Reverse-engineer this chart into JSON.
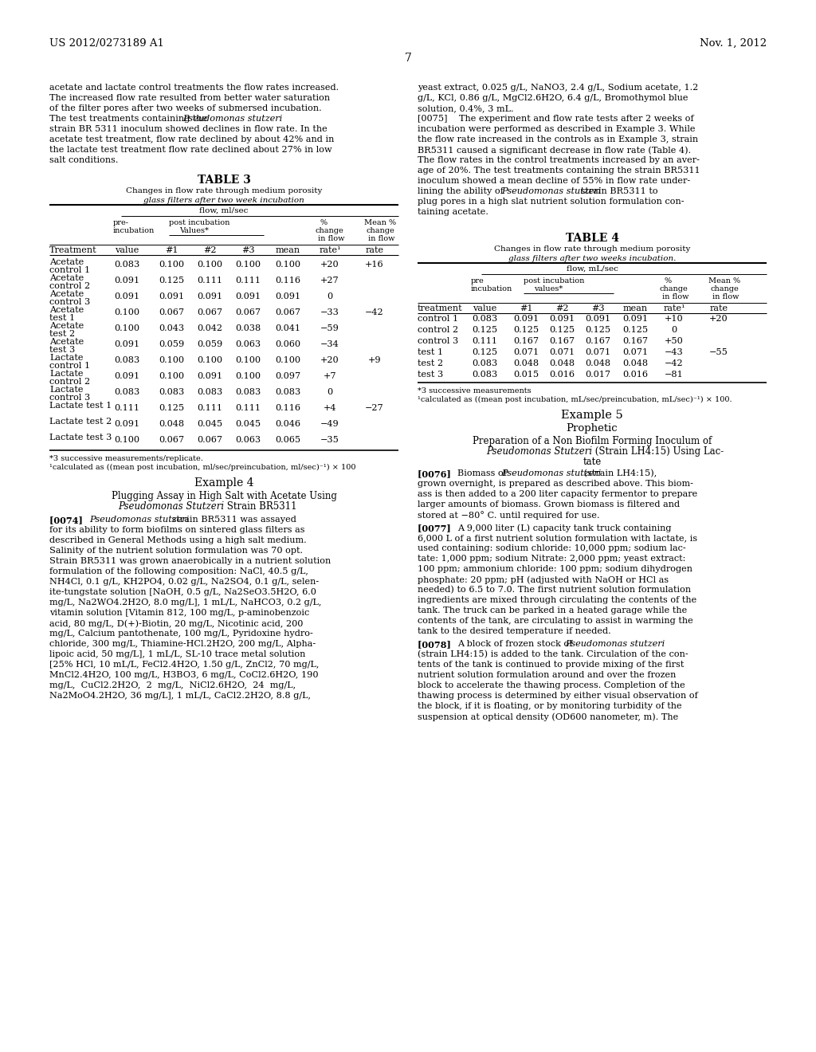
{
  "background_color": "#ffffff",
  "header_left": "US 2012/0273189 A1",
  "header_right": "Nov. 1, 2012",
  "page_number": "7",
  "left_body_lines": [
    "acetate and lactate control treatments the flow rates increased.",
    "The increased flow rate resulted from better water saturation",
    "of the filter pores after two weeks of submersed incubation.",
    "The test treatments containing the Pseudomonas stutzeri",
    "strain BR 5311 inoculum showed declines in flow rate. In the",
    "acetate test treatment, flow rate declined by about 42% and in",
    "the lactate test treatment flow rate declined about 27% in low",
    "salt conditions."
  ],
  "right_body_lines": [
    "yeast extract, 0.025 g/L, NaNO3, 2.4 g/L, Sodium acetate, 1.2",
    "g/L, KCl, 0.86 g/L, MgCl2.6H2O, 6.4 g/L, Bromothymol blue",
    "solution, 0.4%, 3 mL.",
    "[0075]    The experiment and flow rate tests after 2 weeks of",
    "incubation were performed as described in Example 3. While",
    "the flow rate increased in the controls as in Example 3, strain",
    "BR5311 caused a significant decrease in flow rate (Table 4).",
    "The flow rates in the control treatments increased by an aver-",
    "age of 20%. The test treatments containing the strain BR5311",
    "inoculum showed a mean decline of 55% in flow rate under-",
    "lining the ability of Pseudomonas stutzeri strain BR5311 to",
    "plug pores in a high slat nutrient solution formulation con-",
    "taining acetate."
  ],
  "table3_title": "TABLE 3",
  "table3_sub1": "Changes in flow rate through medium porosity",
  "table3_sub2": "glass filters after two week incubation",
  "table3_flow": "flow, ml/sec",
  "table3_rows": [
    [
      "Acetate",
      "control 1",
      "0.083",
      "0.100",
      "0.100",
      "0.100",
      "0.100",
      "+20",
      "+16"
    ],
    [
      "Acetate",
      "control 2",
      "0.091",
      "0.125",
      "0.111",
      "0.111",
      "0.116",
      "+27",
      ""
    ],
    [
      "Acetate",
      "control 3",
      "0.091",
      "0.091",
      "0.091",
      "0.091",
      "0.091",
      "0",
      ""
    ],
    [
      "Acetate",
      "test 1",
      "0.100",
      "0.067",
      "0.067",
      "0.067",
      "0.067",
      "−33",
      "−42"
    ],
    [
      "Acetate",
      "test 2",
      "0.100",
      "0.043",
      "0.042",
      "0.038",
      "0.041",
      "−59",
      ""
    ],
    [
      "Acetate",
      "test 3",
      "0.091",
      "0.059",
      "0.059",
      "0.063",
      "0.060",
      "−34",
      ""
    ],
    [
      "Lactate",
      "control 1",
      "0.083",
      "0.100",
      "0.100",
      "0.100",
      "0.100",
      "+20",
      "+9"
    ],
    [
      "Lactate",
      "control 2",
      "0.091",
      "0.100",
      "0.091",
      "0.100",
      "0.097",
      "+7",
      ""
    ],
    [
      "Lactate",
      "control 3",
      "0.083",
      "0.083",
      "0.083",
      "0.083",
      "0.083",
      "0",
      ""
    ],
    [
      "Lactate test 1",
      "",
      "0.111",
      "0.125",
      "0.111",
      "0.111",
      "0.116",
      "+4",
      "−27"
    ],
    [
      "Lactate test 2",
      "",
      "0.091",
      "0.048",
      "0.045",
      "0.045",
      "0.046",
      "−49",
      ""
    ],
    [
      "Lactate test 3",
      "",
      "0.100",
      "0.067",
      "0.067",
      "0.063",
      "0.065",
      "−35",
      ""
    ]
  ],
  "table3_fn1": "*3 successive measurements/replicate.",
  "table3_fn2": "¹calculated as ((mean post incubation, ml/sec/preincubation, ml/sec)⁻¹) × 100",
  "table4_title": "TABLE 4",
  "table4_sub1": "Changes in flow rate through medium porosity",
  "table4_sub2": "glass filters after two weeks incubation.",
  "table4_flow": "flow, mL/sec",
  "table4_rows": [
    [
      "control 1",
      "0.083",
      "0.091",
      "0.091",
      "0.091",
      "0.091",
      "+10",
      "+20"
    ],
    [
      "control 2",
      "0.125",
      "0.125",
      "0.125",
      "0.125",
      "0.125",
      "0",
      ""
    ],
    [
      "control 3",
      "0.111",
      "0.167",
      "0.167",
      "0.167",
      "0.167",
      "+50",
      ""
    ],
    [
      "test 1",
      "0.125",
      "0.071",
      "0.071",
      "0.071",
      "0.071",
      "−43",
      "−55"
    ],
    [
      "test 2",
      "0.083",
      "0.048",
      "0.048",
      "0.048",
      "0.048",
      "−42",
      ""
    ],
    [
      "test 3",
      "0.083",
      "0.015",
      "0.016",
      "0.017",
      "0.016",
      "−81",
      ""
    ]
  ],
  "table4_fn1": "*3 successive measurements",
  "table4_fn2": "¹calculated as ((mean post incubation, mL/sec/preincubation, mL/sec)⁻¹) × 100.",
  "ex4_title": "Example 4",
  "ex4_sub1": "Plugging Assay in High Salt with Acetate Using",
  "ex4_sub2_normal": " Strain BR5311",
  "ex4_sub2_italic": "Pseudomonas Stutzeri",
  "p74_lines": [
    "[0074]    Pseudomonas stutzeri strain BR5311 was assayed",
    "for its ability to form biofilms on sintered glass filters as",
    "described in General Methods using a high salt medium.",
    "Salinity of the nutrient solution formulation was 70 opt.",
    "Strain BR5311 was grown anaerobically in a nutrient solution",
    "formulation of the following composition: NaCl, 40.5 g/L,",
    "NH4Cl, 0.1 g/L, KH2PO4, 0.02 g/L, Na2SO4, 0.1 g/L, selen-",
    "ite-tungstate solution [NaOH, 0.5 g/L, Na2SeO3.5H2O, 6.0",
    "mg/L, Na2WO4.2H2O, 8.0 mg/L], 1 mL/L, NaHCO3, 0.2 g/L,",
    "vitamin solution [Vitamin 812, 100 mg/L, p-aminobenzoic",
    "acid, 80 mg/L, D(+)-Biotin, 20 mg/L, Nicotinic acid, 200",
    "mg/L, Calcium pantothenate, 100 mg/L, Pyridoxine hydro-",
    "chloride, 300 mg/L, Thiamine-HCl.2H2O, 200 mg/L, Alpha-",
    "lipoic acid, 50 mg/L], 1 mL/L, SL-10 trace metal solution",
    "[25% HCl, 10 mL/L, FeCl2.4H2O, 1.50 g/L, ZnCl2, 70 mg/L,",
    "MnCl2.4H2O, 100 mg/L, H3BO3, 6 mg/L, CoCl2.6H2O, 190",
    "mg/L,  CuCl2.2H2O,  2  mg/L,  NiCl2.6H2O,  24  mg/L,",
    "Na2MoO4.2H2O, 36 mg/L], 1 mL/L, CaCl2.2H2O, 8.8 g/L,"
  ],
  "ex5_title": "Example 5",
  "ex5_sub": "Prophetic",
  "ex5_heading1": "Preparation of a Non Biofilm Forming Inoculum of",
  "ex5_heading2_i": "Pseudomonas Stutzeri",
  "ex5_heading2_n": " (Strain LH4:15) Using Lac-",
  "ex5_heading3": "tate",
  "p76_lines": [
    "[0076]    Biomass of Pseudomonas stutzeri (strain LH4:15),",
    "grown overnight, is prepared as described above. This biom-",
    "ass is then added to a 200 liter capacity fermentor to prepare",
    "larger amounts of biomass. Grown biomass is filtered and",
    "stored at −80° C. until required for use."
  ],
  "p77_lines": [
    "[0077]    A 9,000 liter (L) capacity tank truck containing",
    "6,000 L of a first nutrient solution formulation with lactate, is",
    "used containing: sodium chloride: 10,000 ppm; sodium lac-",
    "tate: 1,000 ppm; sodium Nitrate: 2,000 ppm; yeast extract:",
    "100 ppm; ammonium chloride: 100 ppm; sodium dihydrogen",
    "phosphate: 20 ppm; pH (adjusted with NaOH or HCl as",
    "needed) to 6.5 to 7.0. The first nutrient solution formulation",
    "ingredients are mixed through circulating the contents of the",
    "tank. The truck can be parked in a heated garage while the",
    "contents of the tank, are circulating to assist in warming the",
    "tank to the desired temperature if needed."
  ],
  "p78_lines": [
    "[0078]    A block of frozen stock of Pseudomonas stutzeri",
    "(strain LH4:15) is added to the tank. Circulation of the con-",
    "tents of the tank is continued to provide mixing of the first",
    "nutrient solution formulation around and over the frozen",
    "block to accelerate the thawing process. Completion of the",
    "thawing process is determined by either visual observation of",
    "the block, if it is floating, or by monitoring turbidity of the",
    "suspension at optical density (OD600 nanometer, m). The"
  ]
}
